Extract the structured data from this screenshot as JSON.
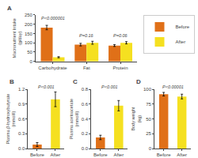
{
  "chart_data": [
    {
      "type": "bar",
      "title": "A",
      "categories": [
        "Carbohydrate",
        "Fat",
        "Protein"
      ],
      "series": [
        {
          "name": "Before",
          "color": "#E07018",
          "values": [
            182,
            90,
            85
          ],
          "errors": [
            12,
            7,
            5
          ]
        },
        {
          "name": "After",
          "color": "#F5E020",
          "values": [
            22,
            100,
            100
          ],
          "errors": [
            3,
            8,
            6
          ]
        }
      ],
      "ylabel": "Macronutrient Intake\n(g/day)",
      "ylim": [
        0,
        250
      ],
      "yticks": [
        0,
        50,
        100,
        150,
        200,
        250
      ],
      "annotations": [
        {
          "x": "Carbohydrate",
          "y": 210,
          "text": "P<0.000001"
        },
        {
          "x": "Fat",
          "y": 118,
          "text": "P=0.16"
        },
        {
          "x": "Protein",
          "y": 118,
          "text": "P=0.06"
        }
      ],
      "grid": false,
      "legend": "upper right"
    },
    {
      "type": "bar",
      "title": "B",
      "categories": [
        "Before",
        "After"
      ],
      "values": [
        0.08,
        1.0
      ],
      "errors": [
        0.04,
        0.15
      ],
      "colors": [
        "#E07018",
        "#F5E020"
      ],
      "ylabel": "Plasma β-hydroxybutyrate\n(mmol/l)",
      "ylim": [
        0,
        1.2
      ],
      "yticks": [
        {
          "value": 0,
          "label": "0.0"
        },
        0.3,
        0.6,
        0.9,
        1.2
      ],
      "annotations": [
        {
          "text": "P<0.001"
        }
      ],
      "grid": false
    },
    {
      "type": "bar",
      "title": "C",
      "categories": [
        "Before",
        "After"
      ],
      "values": [
        0.15,
        0.58
      ],
      "errors": [
        0.03,
        0.07
      ],
      "colors": [
        "#E07018",
        "#F5E020"
      ],
      "ylabel": "Plasma acetoacetate\n(mmol/l)",
      "ylim": [
        0,
        0.8
      ],
      "yticks": [
        {
          "value": 0,
          "label": "0.0"
        },
        0.2,
        0.4,
        0.6,
        0.8
      ],
      "annotations": [
        {
          "text": "P<0.001"
        }
      ],
      "grid": false
    },
    {
      "type": "bar",
      "title": "D",
      "categories": [
        "Before",
        "After"
      ],
      "values": [
        92,
        88
      ],
      "errors": [
        3,
        4
      ],
      "colors": [
        "#E07018",
        "#F5E020"
      ],
      "ylabel": "Body weight\n(kg)",
      "ylim": [
        0,
        100
      ],
      "yticks": [
        0,
        25,
        50,
        75,
        100
      ],
      "annotations": [
        {
          "text": "P<0.00001"
        }
      ],
      "grid": false
    }
  ]
}
